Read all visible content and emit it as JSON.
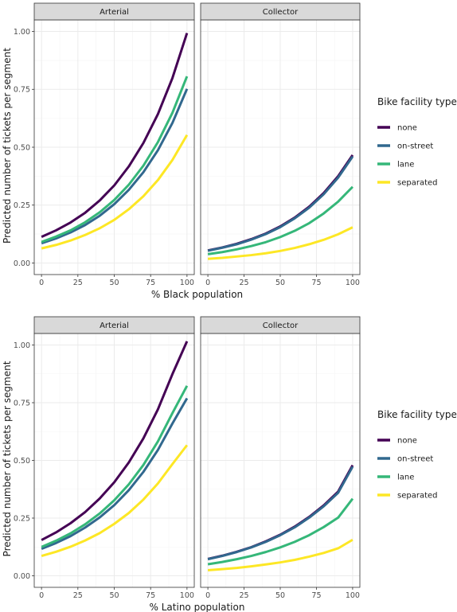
{
  "chart_data": [
    {
      "type": "line",
      "title": "",
      "xlabel": "% Black population",
      "ylabel": "Predicted number of tickets per segment",
      "xlim": [
        0,
        100
      ],
      "ylim": [
        0,
        1.0
      ],
      "x_ticks": [
        "0",
        "25",
        "50",
        "75",
        "100"
      ],
      "y_ticks": [
        "0.00",
        "0.25",
        "0.50",
        "0.75",
        "1.00"
      ],
      "grid": true,
      "legend": {
        "title": "Bike facility type",
        "placement": "right",
        "entries": [
          "none",
          "on-street",
          "lane",
          "separated"
        ]
      },
      "x": [
        0,
        10,
        20,
        30,
        40,
        50,
        60,
        70,
        80,
        90,
        100
      ],
      "facets": [
        {
          "label": "Arterial",
          "series": [
            {
              "name": "none",
              "values": [
                0.113,
                0.141,
                0.175,
                0.217,
                0.27,
                0.335,
                0.417,
                0.518,
                0.643,
                0.799,
                0.993
              ]
            },
            {
              "name": "on-street",
              "values": [
                0.085,
                0.106,
                0.132,
                0.164,
                0.204,
                0.254,
                0.316,
                0.392,
                0.487,
                0.605,
                0.752
              ]
            },
            {
              "name": "lane",
              "values": [
                0.091,
                0.114,
                0.141,
                0.176,
                0.219,
                0.272,
                0.338,
                0.42,
                0.522,
                0.649,
                0.806
              ]
            },
            {
              "name": "separated",
              "values": [
                0.063,
                0.078,
                0.097,
                0.121,
                0.15,
                0.186,
                0.232,
                0.288,
                0.358,
                0.445,
                0.553
              ]
            }
          ]
        },
        {
          "label": "Collector",
          "series": [
            {
              "name": "none",
              "values": [
                0.054,
                0.067,
                0.083,
                0.103,
                0.127,
                0.158,
                0.196,
                0.243,
                0.302,
                0.375,
                0.466
              ]
            },
            {
              "name": "on-street",
              "values": [
                0.053,
                0.066,
                0.081,
                0.101,
                0.125,
                0.155,
                0.193,
                0.239,
                0.297,
                0.369,
                0.46
              ]
            },
            {
              "name": "lane",
              "values": [
                0.038,
                0.047,
                0.059,
                0.073,
                0.09,
                0.112,
                0.139,
                0.172,
                0.214,
                0.265,
                0.329
              ]
            },
            {
              "name": "separated",
              "values": [
                0.018,
                0.022,
                0.028,
                0.034,
                0.042,
                0.052,
                0.065,
                0.081,
                0.1,
                0.124,
                0.154
              ]
            }
          ]
        }
      ]
    },
    {
      "type": "line",
      "title": "",
      "xlabel": "% Latino population",
      "ylabel": "Predicted number of tickets per segment",
      "xlim": [
        0,
        100
      ],
      "ylim": [
        0,
        1.0
      ],
      "x_ticks": [
        "0",
        "25",
        "50",
        "75",
        "100"
      ],
      "y_ticks": [
        "0.00",
        "0.25",
        "0.50",
        "0.75",
        "1.00"
      ],
      "grid": true,
      "legend": {
        "title": "Bike facility type",
        "placement": "right",
        "entries": [
          "none",
          "on-street",
          "lane",
          "separated"
        ]
      },
      "x": [
        0,
        10,
        20,
        30,
        40,
        50,
        60,
        70,
        80,
        90,
        100
      ],
      "facets": [
        {
          "label": "Arterial",
          "series": [
            {
              "name": "none",
              "values": [
                0.155,
                0.188,
                0.228,
                0.276,
                0.335,
                0.405,
                0.491,
                0.595,
                0.721,
                0.874,
                1.016
              ]
            },
            {
              "name": "on-street",
              "values": [
                0.117,
                0.142,
                0.172,
                0.209,
                0.253,
                0.306,
                0.371,
                0.45,
                0.545,
                0.66,
                0.769
              ]
            },
            {
              "name": "lane",
              "values": [
                0.125,
                0.152,
                0.184,
                0.223,
                0.27,
                0.327,
                0.396,
                0.48,
                0.582,
                0.705,
                0.823
              ]
            },
            {
              "name": "separated",
              "values": [
                0.086,
                0.104,
                0.126,
                0.153,
                0.185,
                0.225,
                0.272,
                0.33,
                0.4,
                0.484,
                0.566
              ]
            }
          ]
        },
        {
          "label": "Collector",
          "series": [
            {
              "name": "none",
              "values": [
                0.073,
                0.087,
                0.104,
                0.124,
                0.149,
                0.178,
                0.213,
                0.255,
                0.305,
                0.365,
                0.479
              ]
            },
            {
              "name": "on-street",
              "values": [
                0.072,
                0.086,
                0.103,
                0.123,
                0.147,
                0.176,
                0.21,
                0.252,
                0.301,
                0.36,
                0.473
              ]
            },
            {
              "name": "lane",
              "values": [
                0.05,
                0.06,
                0.072,
                0.086,
                0.103,
                0.123,
                0.147,
                0.176,
                0.211,
                0.252,
                0.334
              ]
            },
            {
              "name": "separated",
              "values": [
                0.024,
                0.029,
                0.034,
                0.041,
                0.049,
                0.058,
                0.069,
                0.083,
                0.099,
                0.119,
                0.156
              ]
            }
          ]
        }
      ]
    }
  ],
  "series_colors": {
    "none": "#440154",
    "on-street": "#31688E",
    "lane": "#35B779",
    "separated": "#FDE725"
  },
  "theme": {
    "panel_border": "#333333",
    "strip_fill": "#D9D9D9",
    "grid_major": "#EBEBEB",
    "grid_minor": "#F5F5F5"
  }
}
